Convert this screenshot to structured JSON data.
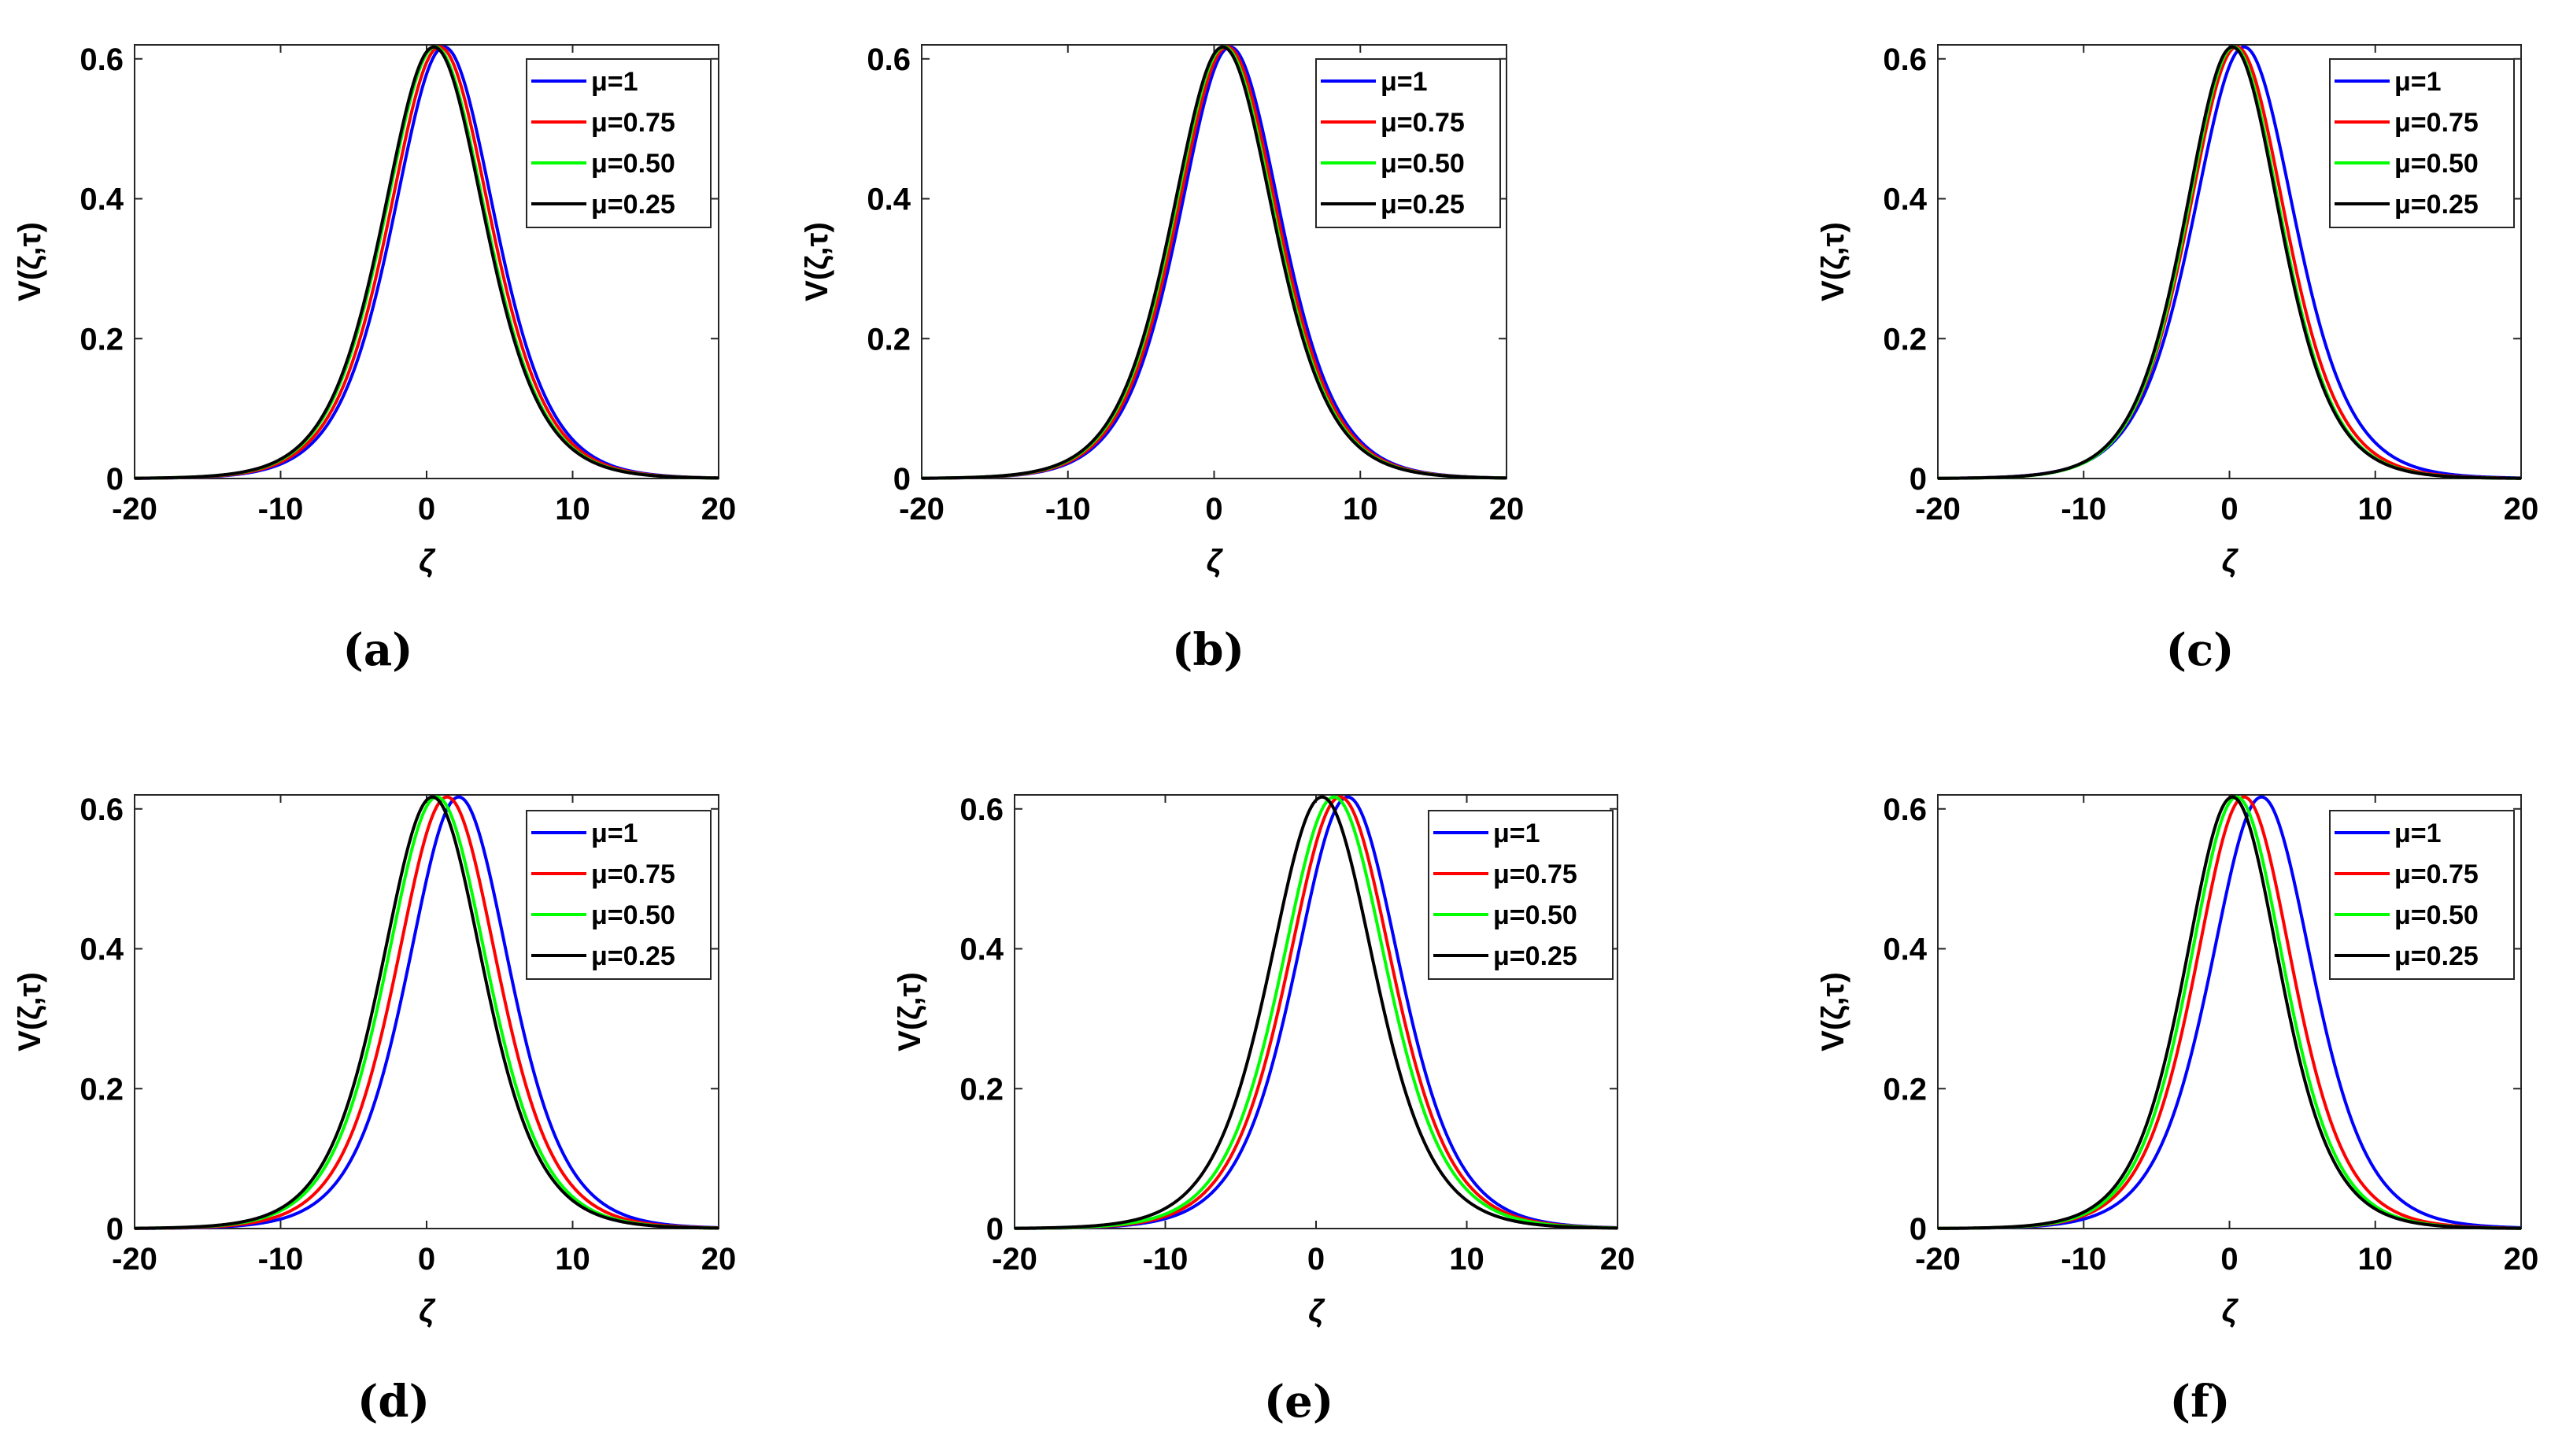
{
  "figure": {
    "panels": [
      "a",
      "b",
      "c",
      "d",
      "e",
      "f"
    ]
  },
  "chart_data": [
    {
      "panel": "a",
      "caption": "(a)",
      "type": "line",
      "xlabel": "ζ",
      "ylabel": "V(ζ,τ)",
      "xlim": [
        -20,
        20
      ],
      "ylim": [
        0,
        0.62
      ],
      "xticks": [
        "-20",
        "-10",
        "0",
        "10",
        "20"
      ],
      "yticks": [
        "0",
        "0.2",
        "0.4",
        "0.6"
      ],
      "legend_position": "top-right",
      "series": [
        {
          "name": "μ=1",
          "color": "#0000ff",
          "peak_x": 1.2,
          "peak_y": 0.617,
          "width": 4.7
        },
        {
          "name": "μ=0.75",
          "color": "#ff0000",
          "peak_x": 0.9,
          "peak_y": 0.617,
          "width": 4.7
        },
        {
          "name": "μ=0.50",
          "color": "#00ff00",
          "peak_x": 0.6,
          "peak_y": 0.617,
          "width": 4.7
        },
        {
          "name": "μ=0.25",
          "color": "#000000",
          "peak_x": 0.5,
          "peak_y": 0.617,
          "width": 4.7
        }
      ]
    },
    {
      "panel": "b",
      "caption": "(b)",
      "type": "line",
      "xlabel": "ζ",
      "ylabel": "V(ζ,τ)",
      "xlim": [
        -20,
        20
      ],
      "ylim": [
        0,
        0.62
      ],
      "xticks": [
        "-20",
        "-10",
        "0",
        "10",
        "20"
      ],
      "yticks": [
        "0",
        "0.2",
        "0.4",
        "0.6"
      ],
      "legend_position": "top-right",
      "series": [
        {
          "name": "μ=1",
          "color": "#0000ff",
          "peak_x": 1.1,
          "peak_y": 0.617,
          "width": 4.7
        },
        {
          "name": "μ=0.75",
          "color": "#ff0000",
          "peak_x": 0.9,
          "peak_y": 0.617,
          "width": 4.7
        },
        {
          "name": "μ=0.50",
          "color": "#00ff00",
          "peak_x": 0.7,
          "peak_y": 0.617,
          "width": 4.7
        },
        {
          "name": "μ=0.25",
          "color": "#000000",
          "peak_x": 0.6,
          "peak_y": 0.617,
          "width": 4.7
        }
      ]
    },
    {
      "panel": "c",
      "caption": "(c)",
      "type": "line",
      "xlabel": "ζ",
      "ylabel": "V(ζ,τ)",
      "xlim": [
        -20,
        20
      ],
      "ylim": [
        0,
        0.62
      ],
      "xticks": [
        "-20",
        "-10",
        "0",
        "10",
        "20"
      ],
      "yticks": [
        "0",
        "0.2",
        "0.4",
        "0.6"
      ],
      "legend_position": "top-right",
      "series": [
        {
          "name": "μ=1",
          "color": "#0000ff",
          "peak_x": 1.0,
          "peak_y": 0.617,
          "width": 4.7
        },
        {
          "name": "μ=0.75",
          "color": "#ff0000",
          "peak_x": 0.5,
          "peak_y": 0.617,
          "width": 4.5
        },
        {
          "name": "μ=0.50",
          "color": "#00ff00",
          "peak_x": 0.3,
          "peak_y": 0.617,
          "width": 4.4
        },
        {
          "name": "μ=0.25",
          "color": "#000000",
          "peak_x": 0.2,
          "peak_y": 0.617,
          "width": 4.4
        }
      ]
    },
    {
      "panel": "d",
      "caption": "(d)",
      "type": "line",
      "xlabel": "ζ",
      "ylabel": "V(ζ,τ)",
      "xlim": [
        -20,
        20
      ],
      "ylim": [
        0,
        0.62
      ],
      "xticks": [
        "-20",
        "-10",
        "0",
        "10",
        "20"
      ],
      "yticks": [
        "0",
        "0.2",
        "0.4",
        "0.6"
      ],
      "legend_position": "top-right",
      "series": [
        {
          "name": "μ=1",
          "color": "#0000ff",
          "peak_x": 2.2,
          "peak_y": 0.617,
          "width": 4.7
        },
        {
          "name": "μ=0.75",
          "color": "#ff0000",
          "peak_x": 1.4,
          "peak_y": 0.617,
          "width": 4.7
        },
        {
          "name": "μ=0.50",
          "color": "#00ff00",
          "peak_x": 0.7,
          "peak_y": 0.617,
          "width": 4.7
        },
        {
          "name": "μ=0.25",
          "color": "#000000",
          "peak_x": 0.4,
          "peak_y": 0.617,
          "width": 4.7
        }
      ]
    },
    {
      "panel": "e",
      "caption": "(e)",
      "type": "line",
      "xlabel": "ζ",
      "ylabel": "V(ζ,τ)",
      "xlim": [
        -20,
        20
      ],
      "ylim": [
        0,
        0.62
      ],
      "xticks": [
        "-20",
        "-10",
        "0",
        "10",
        "20"
      ],
      "yticks": [
        "0",
        "0.2",
        "0.4",
        "0.6"
      ],
      "legend_position": "top-right",
      "series": [
        {
          "name": "μ=1",
          "color": "#0000ff",
          "peak_x": 2.1,
          "peak_y": 0.617,
          "width": 4.7
        },
        {
          "name": "μ=0.75",
          "color": "#ff0000",
          "peak_x": 1.6,
          "peak_y": 0.617,
          "width": 4.7
        },
        {
          "name": "μ=0.50",
          "color": "#00ff00",
          "peak_x": 1.2,
          "peak_y": 0.617,
          "width": 4.7
        },
        {
          "name": "μ=0.25",
          "color": "#000000",
          "peak_x": 0.4,
          "peak_y": 0.617,
          "width": 4.7
        }
      ]
    },
    {
      "panel": "f",
      "caption": "(f)",
      "type": "line",
      "xlabel": "ζ",
      "ylabel": "V(ζ,τ)",
      "xlim": [
        -20,
        20
      ],
      "ylim": [
        0,
        0.62
      ],
      "xticks": [
        "-20",
        "-10",
        "0",
        "10",
        "20"
      ],
      "yticks": [
        "0",
        "0.2",
        "0.4",
        "0.6"
      ],
      "legend_position": "top-right",
      "series": [
        {
          "name": "μ=1",
          "color": "#0000ff",
          "peak_x": 2.2,
          "peak_y": 0.617,
          "width": 4.7
        },
        {
          "name": "μ=0.75",
          "color": "#ff0000",
          "peak_x": 1.0,
          "peak_y": 0.617,
          "width": 4.5
        },
        {
          "name": "μ=0.50",
          "color": "#00ff00",
          "peak_x": 0.5,
          "peak_y": 0.617,
          "width": 4.4
        },
        {
          "name": "μ=0.25",
          "color": "#000000",
          "peak_x": 0.2,
          "peak_y": 0.617,
          "width": 4.4
        }
      ]
    }
  ]
}
